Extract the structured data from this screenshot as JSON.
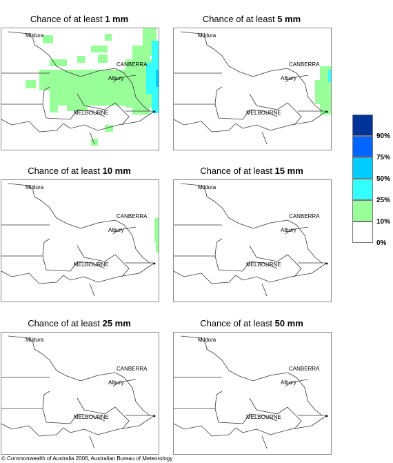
{
  "panels": [
    {
      "prefix": "Chance of at least ",
      "amount": "1 mm"
    },
    {
      "prefix": "Chance of at least ",
      "amount": "5 mm"
    },
    {
      "prefix": "Chance of at least ",
      "amount": "10 mm"
    },
    {
      "prefix": "Chance of at least ",
      "amount": "15 mm"
    },
    {
      "prefix": "Chance of at least ",
      "amount": "25 mm"
    },
    {
      "prefix": "Chance of at least ",
      "amount": "50 mm"
    }
  ],
  "places": {
    "mildura": "Mildura",
    "canberra": "CANBERRA",
    "albury": "Albury",
    "melbourne": "MELBOURNE"
  },
  "legend": {
    "labels": [
      "90%",
      "75%",
      "50%",
      "25%",
      "10%",
      "0%"
    ],
    "colors": [
      "#003399",
      "#0066ff",
      "#00ccff",
      "#33ffff",
      "#99ff99",
      "#ffffff"
    ]
  },
  "footer": "© Commonwealth of Australia 2006, Australian Bureau of Meteorology"
}
